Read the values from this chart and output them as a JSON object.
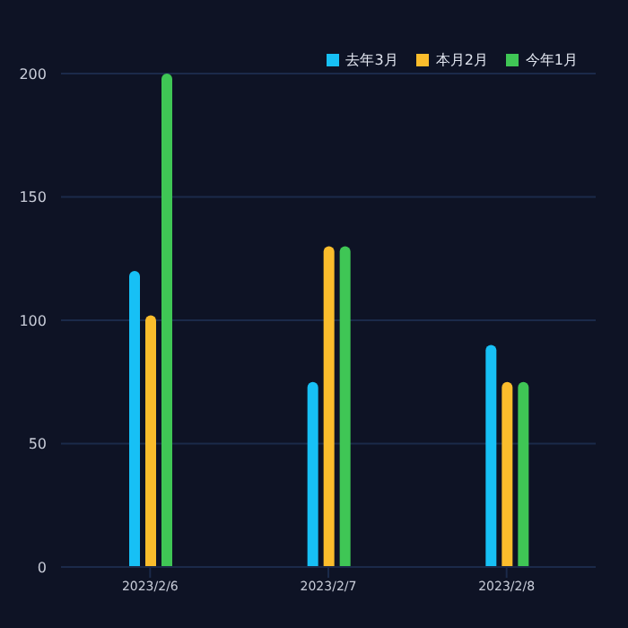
{
  "chart_data": {
    "type": "bar",
    "categories": [
      "2023/2/6",
      "2023/2/7",
      "2023/2/8"
    ],
    "series": [
      {
        "name": "去年3月",
        "color": "#17c0f5",
        "values": [
          120,
          75,
          90
        ]
      },
      {
        "name": "本月2月",
        "color": "#fbbd2c",
        "values": [
          102,
          130,
          75
        ]
      },
      {
        "name": "今年1月",
        "color": "#3fc655",
        "values": [
          200,
          130,
          75
        ]
      }
    ],
    "ylim": [
      0,
      200
    ],
    "yticks": [
      0,
      50,
      100,
      150,
      200
    ],
    "grid": "y",
    "legend": "top right"
  }
}
